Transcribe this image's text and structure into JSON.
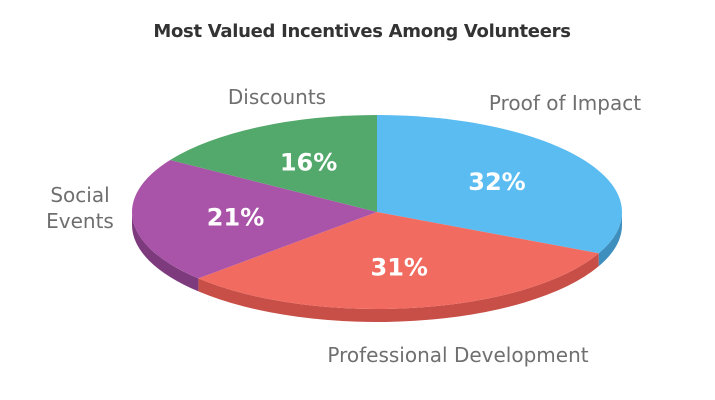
{
  "chart_data": {
    "type": "pie",
    "title": "Most Valued Incentives Among Volunteers",
    "slices": [
      {
        "label": "Proof of Impact",
        "value": 32,
        "display": "32%",
        "color": "#5bbcf2",
        "side_color": "#3f8fbe"
      },
      {
        "label": "Professional Development",
        "value": 31,
        "display": "31%",
        "color": "#f26b60",
        "side_color": "#c84f47"
      },
      {
        "label": "Social Events",
        "value": 21,
        "display": "21%",
        "color": "#a954a8",
        "side_color": "#7d3b7d"
      },
      {
        "label": "Discounts",
        "value": 16,
        "display": "16%",
        "color": "#53a86b",
        "side_color": "#3c7d4f"
      }
    ],
    "label_lines": {
      "Social Events": [
        "Social",
        "Events"
      ]
    }
  }
}
